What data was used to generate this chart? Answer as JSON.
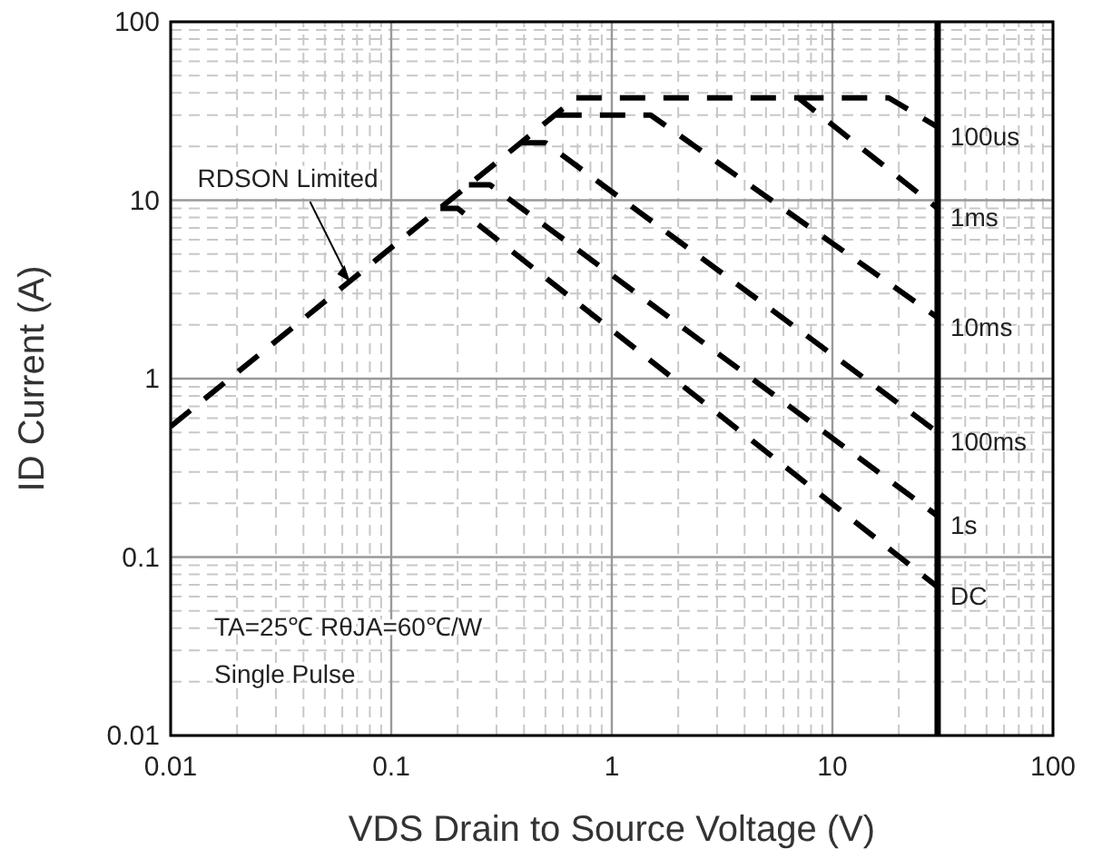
{
  "chart_data": {
    "type": "line",
    "xlabel": "VDS Drain to Source Voltage (V)",
    "ylabel": "ID Current (A)",
    "log": "xy",
    "xlim": [
      0.01,
      100
    ],
    "ylim": [
      0.01,
      100
    ],
    "xticks": [
      0.01,
      0.1,
      1,
      10,
      100
    ],
    "yticks": [
      0.01,
      0.1,
      1,
      10,
      100
    ],
    "grid": true,
    "line_style": "dashed",
    "marker": "none",
    "series": [
      {
        "color": "#000000",
        "x": [
          0.01,
          0.69
        ],
        "values": [
          0.54,
          37.5
        ]
      },
      {
        "name": "DC",
        "color": "#000000",
        "x": [
          0.167,
          0.2,
          30
        ],
        "values": [
          9,
          9,
          0.068
        ]
      },
      {
        "name": "1s",
        "color": "#000000",
        "x": [
          0.225,
          0.28,
          30
        ],
        "values": [
          12.2,
          12.2,
          0.17
        ]
      },
      {
        "name": "100ms",
        "color": "#000000",
        "x": [
          0.39,
          0.5,
          30
        ],
        "values": [
          21,
          21,
          0.5
        ]
      },
      {
        "name": "10ms",
        "color": "#000000",
        "x": [
          0.56,
          1.5,
          30
        ],
        "values": [
          30,
          30,
          2.2
        ]
      },
      {
        "name": "1ms",
        "color": "#000000",
        "x": [
          0.69,
          7,
          30
        ],
        "values": [
          37.5,
          37.5,
          9
        ]
      },
      {
        "name": "100us",
        "color": "#000000",
        "x": [
          7,
          18,
          30
        ],
        "values": [
          37.5,
          37.5,
          25.7
        ]
      }
    ],
    "ref_lines": [
      {
        "axis": "x",
        "value": 30,
        "color": "#000000",
        "line_style": "solid"
      }
    ],
    "annotations": [
      {
        "text": "RDSON Limited",
        "x": 0.065,
        "y": 3.5
      },
      "TA=25℃  RθJA=60℃/W",
      "Single Pulse"
    ]
  }
}
